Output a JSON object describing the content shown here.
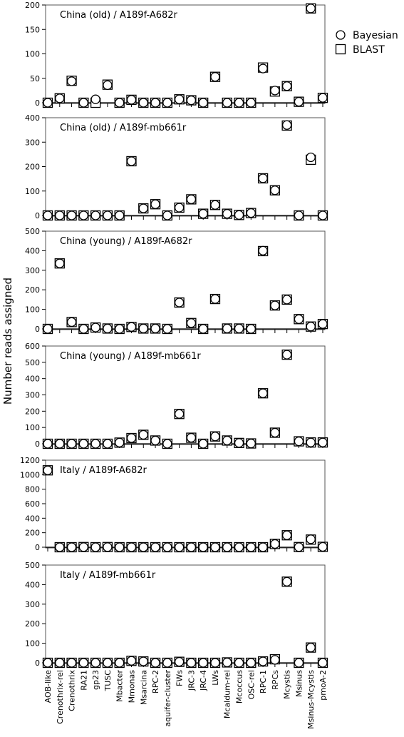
{
  "figure": {
    "ylabel": "Number reads assigned",
    "legend": [
      {
        "label": "Bayesian",
        "marker": "circle"
      },
      {
        "label": "BLAST",
        "marker": "square"
      }
    ],
    "legend_position": "right of top panel"
  },
  "chart_data": [
    {
      "type": "scatter",
      "title": "China (old) / A189f-A682r",
      "ylim": [
        0,
        200
      ],
      "yticks": [
        0,
        50,
        100,
        150,
        200
      ],
      "categories": [
        "AOB-like",
        "Crenothrix-rel",
        "Crenothrix",
        "RA21",
        "gp23",
        "TUSC",
        "Mbacter",
        "Mmonas",
        "Msarcina",
        "RPC-2",
        "aquifer-cluster",
        "FWs",
        "JRC-3",
        "JRC-4",
        "LWs",
        "Mcaldum-rel",
        "Mcoccus",
        "OSC-rel",
        "RPC-1",
        "RPCs",
        "Mcystis",
        "Msinus",
        "Msinus-Mcystis",
        "pmoA-2"
      ],
      "series": [
        {
          "name": "Bayesian",
          "values": [
            0,
            9,
            44,
            0,
            7,
            36,
            0,
            6,
            0,
            0,
            0,
            7,
            5,
            0,
            53,
            0,
            0,
            0,
            70,
            25,
            34,
            2,
            193,
            10
          ]
        },
        {
          "name": "BLAST",
          "values": [
            0,
            9,
            45,
            0,
            0,
            37,
            0,
            6,
            0,
            0,
            0,
            7,
            5,
            0,
            53,
            0,
            0,
            0,
            72,
            23,
            34,
            2,
            193,
            10
          ]
        }
      ]
    },
    {
      "type": "scatter",
      "title": "China (old) / A189f-mb661r",
      "ylim": [
        0,
        400
      ],
      "yticks": [
        0,
        100,
        200,
        300,
        400
      ],
      "categories": [
        "AOB-like",
        "Crenothrix-rel",
        "Crenothrix",
        "RA21",
        "gp23",
        "TUSC",
        "Mbacter",
        "Mmonas",
        "Msarcina",
        "RPC-2",
        "aquifer-cluster",
        "FWs",
        "JRC-3",
        "JRC-4",
        "LWs",
        "Mcaldum-rel",
        "Mcoccus",
        "OSC-rel",
        "RPC-1",
        "RPCs",
        "Mcystis",
        "Msinus",
        "Msinus-Mcystis",
        "pmoA-2"
      ],
      "series": [
        {
          "name": "Bayesian",
          "values": [
            0,
            0,
            0,
            0,
            0,
            0,
            0,
            222,
            29,
            46,
            0,
            32,
            66,
            7,
            43,
            7,
            2,
            10,
            152,
            103,
            370,
            0,
            238,
            0
          ]
        },
        {
          "name": "BLAST",
          "values": [
            0,
            0,
            0,
            0,
            0,
            0,
            0,
            222,
            29,
            46,
            0,
            32,
            66,
            7,
            43,
            7,
            2,
            10,
            152,
            103,
            368,
            0,
            228,
            0
          ]
        }
      ]
    },
    {
      "type": "scatter",
      "title": "China (young) / A189f-A682r",
      "ylim": [
        0,
        500
      ],
      "yticks": [
        0,
        100,
        200,
        300,
        400,
        500
      ],
      "categories": [
        "AOB-like",
        "Crenothrix-rel",
        "Crenothrix",
        "RA21",
        "gp23",
        "TUSC",
        "Mbacter",
        "Mmonas",
        "Msarcina",
        "RPC-2",
        "aquifer-cluster",
        "FWs",
        "JRC-3",
        "JRC-4",
        "LWs",
        "Mcaldum-rel",
        "Mcoccus",
        "OSC-rel",
        "RPC-1",
        "RPCs",
        "Mcystis",
        "Msinus",
        "Msinus-Mcystis",
        "pmoA-2"
      ],
      "series": [
        {
          "name": "Bayesian",
          "values": [
            0,
            335,
            35,
            0,
            7,
            2,
            0,
            10,
            2,
            2,
            0,
            135,
            30,
            0,
            153,
            2,
            2,
            0,
            400,
            120,
            150,
            50,
            12,
            25
          ]
        },
        {
          "name": "BLAST",
          "values": [
            0,
            335,
            35,
            0,
            7,
            2,
            0,
            10,
            2,
            2,
            0,
            135,
            30,
            0,
            153,
            2,
            2,
            0,
            398,
            120,
            150,
            50,
            12,
            25
          ]
        }
      ]
    },
    {
      "type": "scatter",
      "title": "China (young) / A189f-mb661r",
      "ylim": [
        0,
        600
      ],
      "yticks": [
        0,
        100,
        200,
        300,
        400,
        500,
        600
      ],
      "categories": [
        "AOB-like",
        "Crenothrix-rel",
        "Crenothrix",
        "RA21",
        "gp23",
        "TUSC",
        "Mbacter",
        "Mmonas",
        "Msarcina",
        "RPC-2",
        "aquifer-cluster",
        "FWs",
        "JRC-3",
        "JRC-4",
        "LWs",
        "Mcaldum-rel",
        "Mcoccus",
        "OSC-rel",
        "RPC-1",
        "RPCs",
        "Mcystis",
        "Msinus",
        "Msinus-Mcystis",
        "pmoA-2"
      ],
      "series": [
        {
          "name": "Bayesian",
          "values": [
            0,
            0,
            0,
            0,
            0,
            0,
            7,
            35,
            55,
            20,
            0,
            183,
            37,
            0,
            45,
            20,
            5,
            2,
            310,
            68,
            547,
            15,
            8,
            8
          ]
        },
        {
          "name": "BLAST",
          "values": [
            0,
            0,
            0,
            0,
            0,
            0,
            7,
            35,
            55,
            20,
            0,
            183,
            37,
            0,
            45,
            20,
            5,
            2,
            310,
            68,
            547,
            15,
            8,
            8
          ]
        }
      ]
    },
    {
      "type": "scatter",
      "title": "Italy / A189f-A682r",
      "ylim": [
        0,
        1200
      ],
      "yticks": [
        0,
        200,
        400,
        600,
        800,
        1000,
        1200
      ],
      "categories": [
        "AOB-like",
        "Crenothrix-rel",
        "Crenothrix",
        "RA21",
        "gp23",
        "TUSC",
        "Mbacter",
        "Mmonas",
        "Msarcina",
        "RPC-2",
        "aquifer-cluster",
        "FWs",
        "JRC-3",
        "JRC-4",
        "LWs",
        "Mcaldum-rel",
        "Mcoccus",
        "OSC-rel",
        "RPC-1",
        "RPCs",
        "Mcystis",
        "Msinus",
        "Msinus-Mcystis",
        "pmoA-2"
      ],
      "series": [
        {
          "name": "Bayesian",
          "values": [
            1060,
            0,
            0,
            2,
            0,
            2,
            0,
            0,
            0,
            0,
            0,
            0,
            0,
            0,
            0,
            0,
            0,
            0,
            0,
            45,
            165,
            2,
            110,
            5
          ]
        },
        {
          "name": "BLAST",
          "values": [
            1060,
            0,
            0,
            2,
            0,
            2,
            0,
            0,
            0,
            0,
            0,
            0,
            0,
            0,
            0,
            0,
            0,
            0,
            0,
            45,
            165,
            2,
            105,
            5
          ]
        }
      ]
    },
    {
      "type": "scatter",
      "title": "Italy / A189f-mb661r",
      "ylim": [
        0,
        500
      ],
      "yticks": [
        0,
        100,
        200,
        300,
        400,
        500
      ],
      "categories": [
        "AOB-like",
        "Crenothrix-rel",
        "Crenothrix",
        "RA21",
        "gp23",
        "TUSC",
        "Mbacter",
        "Mmonas",
        "Msarcina",
        "RPC-2",
        "aquifer-cluster",
        "FWs",
        "JRC-3",
        "JRC-4",
        "LWs",
        "Mcaldum-rel",
        "Mcoccus",
        "OSC-rel",
        "RPC-1",
        "RPCs",
        "Mcystis",
        "Msinus",
        "Msinus-Mcystis",
        "pmoA-2"
      ],
      "series": [
        {
          "name": "Bayesian",
          "values": [
            0,
            0,
            0,
            0,
            0,
            0,
            0,
            10,
            7,
            0,
            0,
            5,
            0,
            0,
            0,
            2,
            0,
            0,
            7,
            15,
            415,
            0,
            78,
            0
          ]
        },
        {
          "name": "BLAST",
          "values": [
            0,
            0,
            0,
            0,
            0,
            0,
            0,
            10,
            7,
            0,
            0,
            5,
            0,
            0,
            0,
            2,
            0,
            0,
            7,
            18,
            415,
            0,
            78,
            0
          ]
        }
      ]
    }
  ]
}
